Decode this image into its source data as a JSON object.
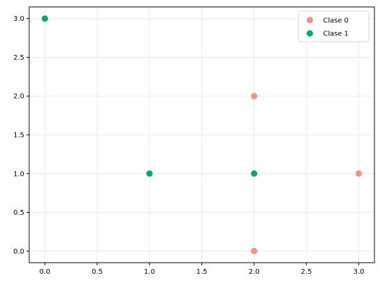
{
  "chart_data": {
    "type": "scatter",
    "title": "",
    "xlabel": "",
    "ylabel": "",
    "xlim": [
      -0.15,
      3.15
    ],
    "ylim": [
      -0.15,
      3.15
    ],
    "grid": true,
    "legend_position": "top-right",
    "x_ticks": [
      {
        "value": 0.0,
        "label": "0.0"
      },
      {
        "value": 0.5,
        "label": "0.5"
      },
      {
        "value": 1.0,
        "label": "1.0"
      },
      {
        "value": 1.5,
        "label": "1.5"
      },
      {
        "value": 2.0,
        "label": "2.0"
      },
      {
        "value": 2.5,
        "label": "2.5"
      },
      {
        "value": 3.0,
        "label": "3.0"
      }
    ],
    "y_ticks": [
      {
        "value": 0.0,
        "label": "0.0"
      },
      {
        "value": 0.5,
        "label": "0.5"
      },
      {
        "value": 1.0,
        "label": "1.0"
      },
      {
        "value": 1.5,
        "label": "1.5"
      },
      {
        "value": 2.0,
        "label": "2.0"
      },
      {
        "value": 2.5,
        "label": "2.5"
      },
      {
        "value": 3.0,
        "label": "3.0"
      }
    ],
    "series": [
      {
        "name": "Clase 0",
        "color": "#f4937b",
        "points": [
          {
            "x": 2,
            "y": 2
          },
          {
            "x": 3,
            "y": 1
          },
          {
            "x": 2,
            "y": 0
          }
        ]
      },
      {
        "name": "Clase 1",
        "color": "#0ea47a",
        "points": [
          {
            "x": 0,
            "y": 3
          },
          {
            "x": 1,
            "y": 1
          },
          {
            "x": 2,
            "y": 1
          }
        ]
      }
    ]
  }
}
